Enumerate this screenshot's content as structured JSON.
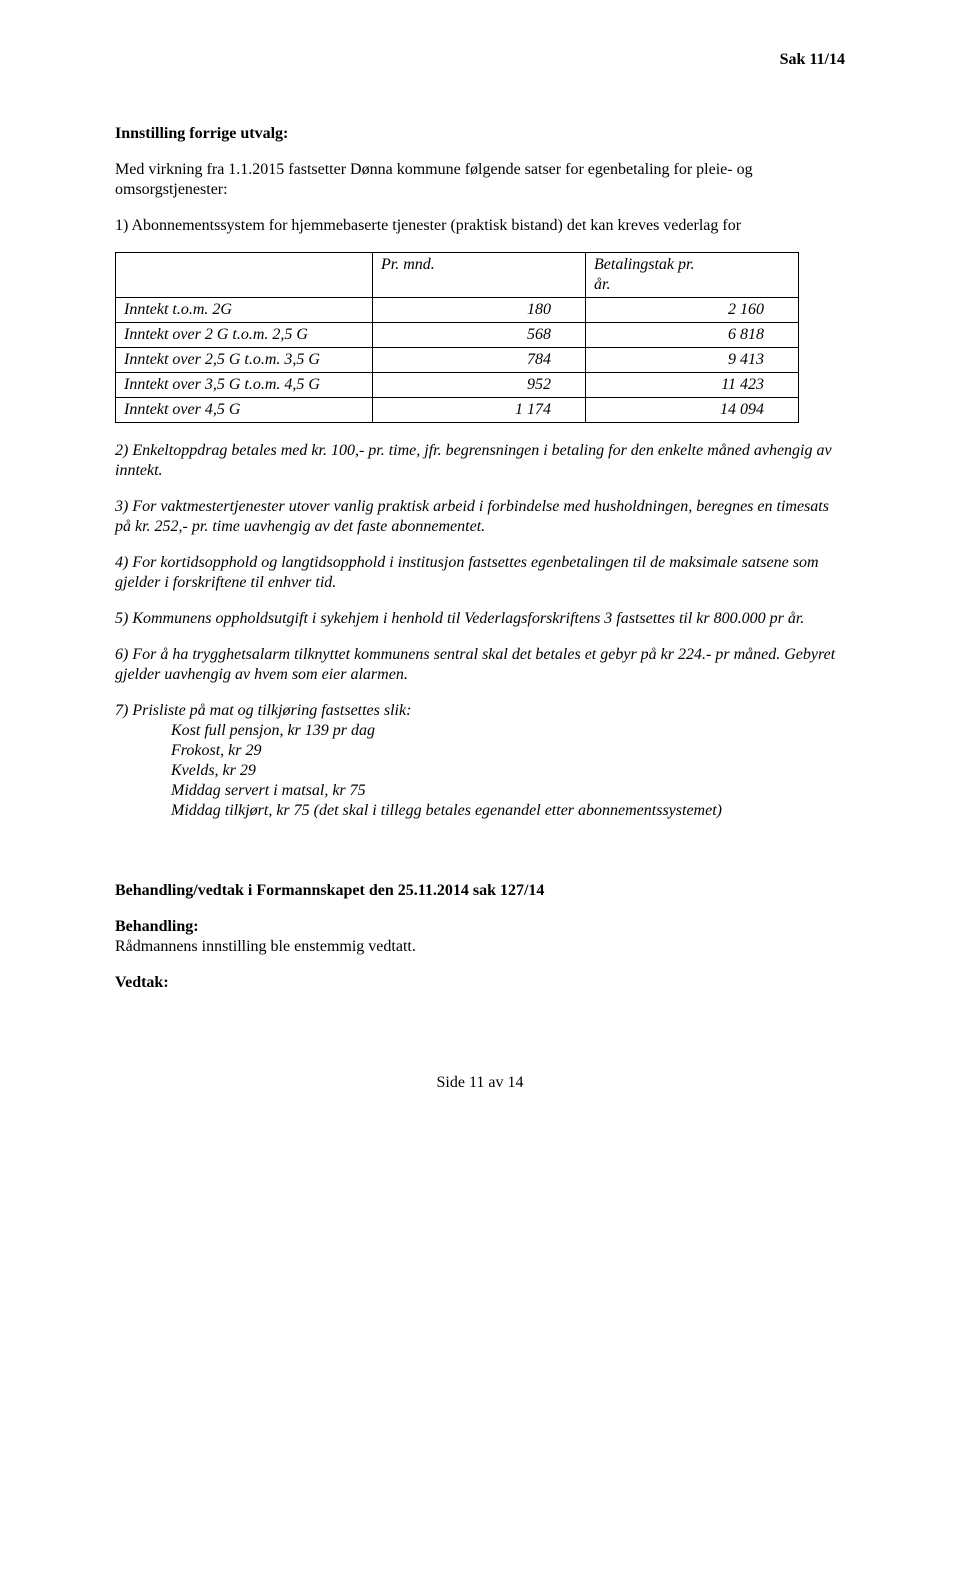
{
  "header": {
    "case_no": "Sak 11/14"
  },
  "section1": {
    "title": "Innstilling forrige utvalg:",
    "lead": "Med virkning fra 1.1.2015 fastsetter Dønna kommune følgende satser for egenbetaling for pleie- og omsorgstjenester:",
    "item1": "1) Abonnementssystem for hjemmebaserte tjenester (praktisk bistand) det kan kreves vederlag for"
  },
  "table": {
    "col1_header": "Pr. mnd.",
    "col2_header_a": "Betalingstak pr.",
    "col2_header_b": "år.",
    "rows": [
      {
        "label": "Inntekt t.o.m. 2G",
        "c1": "180",
        "c2": "2 160"
      },
      {
        "label": "Inntekt over 2 G t.o.m. 2,5 G",
        "c1": "568",
        "c2": "6 818"
      },
      {
        "label": "Inntekt over 2,5 G t.o.m. 3,5 G",
        "c1": "784",
        "c2": "9 413"
      },
      {
        "label": "Inntekt over 3,5 G t.o.m. 4,5 G",
        "c1": "952",
        "c2": "11 423"
      },
      {
        "label": "Inntekt over 4,5 G",
        "c1": "1 174",
        "c2": "14 094"
      }
    ]
  },
  "items": {
    "i2": "2) Enkeltoppdrag betales med kr. 100,- pr. time, jfr. begrensningen i betaling for den enkelte måned avhengig av inntekt.",
    "i3": "3) For vaktmestertjenester utover vanlig praktisk arbeid i forbindelse med husholdningen, beregnes en timesats på kr. 252,- pr. time uavhengig av det faste abonnementet.",
    "i4": "4) For kortidsopphold og langtidsopphold i institusjon fastsettes egenbetalingen til de maksimale satsene som gjelder i forskriftene til enhver tid.",
    "i5": "5) Kommunens oppholdsutgift i sykehjem i henhold til Vederlagsforskriftens 3 fastsettes til kr 800.000 pr år.",
    "i6": "6) For å ha trygghetsalarm tilknyttet kommunens sentral skal det betales et gebyr på kr 224.- pr måned. Gebyret gjelder uavhengig av hvem som eier alarmen.",
    "i7_lead": "7) Prisliste på mat og tilkjøring fastsettes slik:",
    "i7_lines": [
      "Kost full pensjon, kr 139 pr dag",
      "Frokost, kr 29",
      "Kvelds, kr 29",
      "Middag servert i matsal, kr 75",
      "Middag tilkjørt, kr 75 (det skal i tillegg betales egenandel etter abonnementssystemet)"
    ]
  },
  "section2": {
    "title": "Behandling/vedtak i Formannskapet den 25.11.2014 sak 127/14",
    "behandling_label": "Behandling:",
    "behandling_text": "Rådmannens innstilling ble enstemmig vedtatt.",
    "vedtak_label": "Vedtak:"
  },
  "footer": {
    "page": "Side 11 av 14"
  }
}
